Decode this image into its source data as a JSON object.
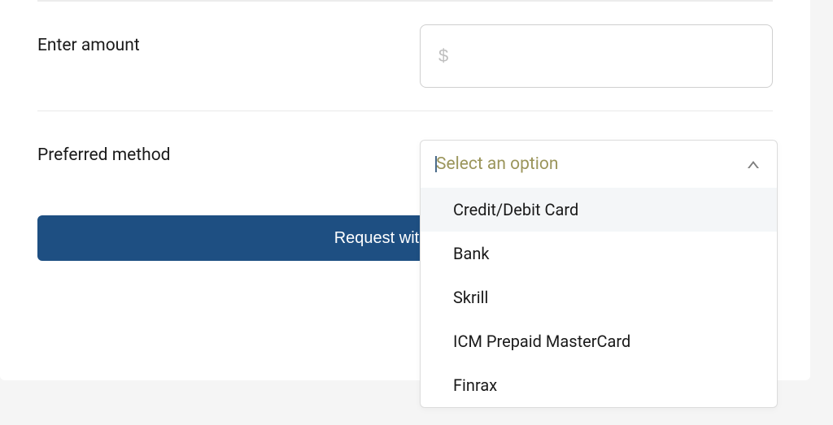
{
  "form": {
    "amount": {
      "label": "Enter amount",
      "placeholder": "$",
      "value": ""
    },
    "method": {
      "label": "Preferred method",
      "placeholder": "Select an option",
      "options": [
        "Credit/Debit Card",
        "Bank",
        "Skrill",
        "ICM Prepaid MasterCard",
        "Finrax"
      ],
      "highlighted_index": 0
    },
    "submit_label": "Request withdrawal"
  },
  "colors": {
    "primary_button": "#1e4f82",
    "placeholder_olive": "#9b955b",
    "card_background": "#ffffff",
    "page_background": "#f5f5f5",
    "border": "#dcdcdc",
    "text": "#1a1a1a"
  }
}
